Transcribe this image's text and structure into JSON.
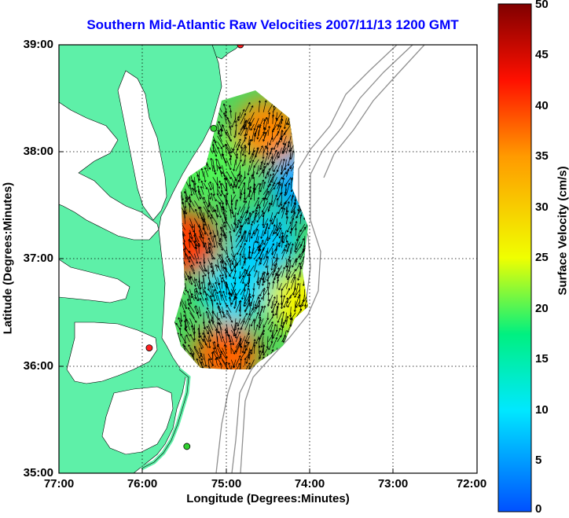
{
  "title": "Southern Mid-Atlantic Raw Velocities 2007/11/13 1200 GMT",
  "x_axis": {
    "label": "Longitude (Degrees:Minutes)",
    "ticks": [
      "77:00",
      "76:00",
      "75:00",
      "74:00",
      "73:00",
      "72:00"
    ],
    "range_deg_west": [
      77,
      72
    ]
  },
  "y_axis": {
    "label": "Latitude (Degrees:Minutes)",
    "ticks": [
      "39:00",
      "38:00",
      "37:00",
      "36:00",
      "35:00"
    ],
    "range_deg_north": [
      35,
      39
    ]
  },
  "colorbar": {
    "label": "Surface Velocity (cm/s)",
    "ticks": [
      "50",
      "45",
      "40",
      "35",
      "30",
      "25",
      "20",
      "15",
      "10",
      "5",
      "0"
    ],
    "range": [
      0,
      50
    ],
    "colors": [
      "#0050ff",
      "#00e8ff",
      "#00f080",
      "#f0ff00",
      "#ff9a00",
      "#ff1000",
      "#800000"
    ]
  },
  "map_colors": {
    "land": "#5ef0a8",
    "water": "#ffffff",
    "bathymetry": "#909090",
    "stations": "#ff2020",
    "stations_alt": "#30d030"
  },
  "chart_data": {
    "type": "vector_field",
    "title": "Southern Mid-Atlantic Raw Velocities 2007/11/13 1200 GMT",
    "xlabel": "Longitude (Degrees:Minutes)",
    "ylabel": "Latitude (Degrees:Minutes)",
    "xlim_deg_west": [
      77,
      72
    ],
    "ylim_deg_north": [
      35,
      39
    ],
    "value_label": "Surface Velocity (cm/s)",
    "value_range": [
      0,
      50
    ],
    "coverage_lon_range": [
      75.6,
      73.7
    ],
    "coverage_lat_range": [
      35.95,
      38.4
    ],
    "speed_regions": [
      {
        "name": "north-high",
        "lon": 74.5,
        "lat": 38.2,
        "speed": 36
      },
      {
        "name": "central-slow",
        "lon": 74.55,
        "lat": 37.15,
        "speed": 8
      },
      {
        "name": "east-slow",
        "lon": 74.1,
        "lat": 37.7,
        "speed": 6
      },
      {
        "name": "south-slow",
        "lon": 74.9,
        "lat": 36.7,
        "speed": 9
      },
      {
        "name": "west-high",
        "lon": 75.5,
        "lat": 37.15,
        "speed": 40
      },
      {
        "name": "south-high",
        "lon": 75.0,
        "lat": 36.1,
        "speed": 38
      },
      {
        "name": "southeast-mid",
        "lon": 74.1,
        "lat": 36.6,
        "speed": 26
      },
      {
        "name": "northwest-mid",
        "lon": 75.2,
        "lat": 37.9,
        "speed": 20
      }
    ],
    "stations": [
      {
        "lon": 74.83,
        "lat": 39.0,
        "color": "red"
      },
      {
        "lon": 75.15,
        "lat": 38.22,
        "color": "green"
      },
      {
        "lon": 75.92,
        "lat": 36.17,
        "color": "red"
      },
      {
        "lon": 75.47,
        "lat": 35.25,
        "color": "green"
      }
    ]
  }
}
